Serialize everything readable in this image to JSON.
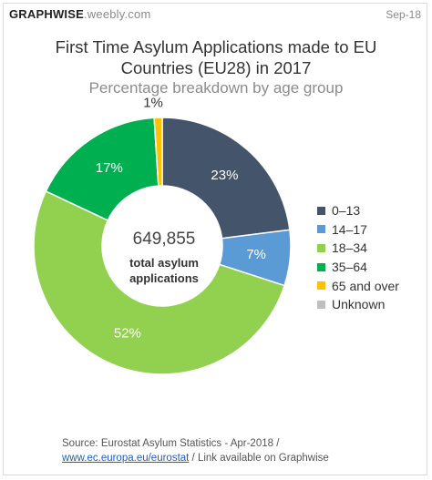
{
  "header": {
    "brand_bold": "GRAPHWISE",
    "brand_light": ".weebly.com",
    "date": "Sep-18"
  },
  "chart_data": {
    "type": "pie",
    "title": "First Time Asylum Applications made to EU Countries (EU28) in 2017",
    "title_line1": "First Time Asylum Applications made to EU",
    "title_line2": "Countries (EU28) in 2017",
    "subtitle": "Percentage breakdown by age group",
    "donut": true,
    "categories": [
      "0–13",
      "14–17",
      "18–34",
      "35–64",
      "65 and over",
      "Unknown"
    ],
    "values": [
      23,
      7,
      52,
      17,
      1,
      0
    ],
    "labels": [
      "23%",
      "7%",
      "52%",
      "17%",
      "1%",
      ""
    ],
    "colors": [
      "#44546a",
      "#5b9bd5",
      "#92d050",
      "#00b050",
      "#ffc000",
      "#bfbfbf"
    ],
    "label_colors": [
      "#ffffff",
      "#ffffff",
      "#ffffff",
      "#ffffff",
      "#333333",
      "#333333"
    ],
    "legend_position": "right",
    "center": {
      "value": "649,855",
      "label_line1": "total asylum",
      "label_line2": "applications"
    }
  },
  "footer": {
    "source_line1": "Source: Eurostat Asylum Statistics - Apr-2018 /",
    "link_text": "www.ec.europa.eu/eurostat",
    "source_line2_rest": " / Link available on Graphwise"
  }
}
